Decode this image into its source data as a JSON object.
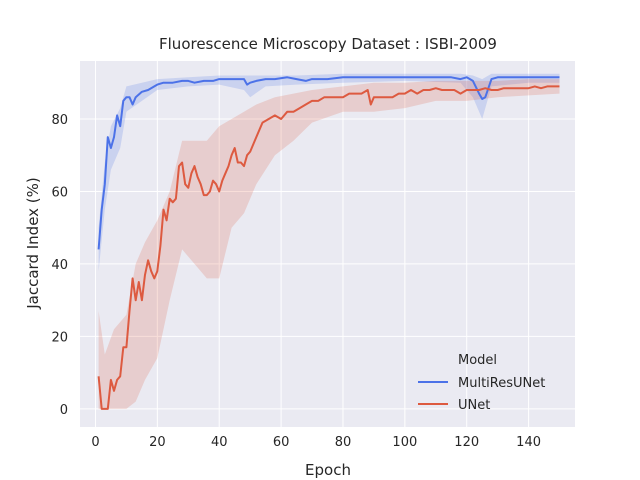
{
  "chart_data": {
    "type": "line",
    "title": "Fluorescence Microscopy Dataset : ISBI-2009",
    "xlabel": "Epoch",
    "ylabel": "Jaccard Index (%)",
    "xlim": [
      -5,
      155
    ],
    "ylim": [
      -5,
      96
    ],
    "xticks": [
      0,
      20,
      40,
      60,
      80,
      100,
      120,
      140
    ],
    "yticks": [
      0,
      20,
      40,
      60,
      80
    ],
    "grid": true,
    "background": "#eaeaf2",
    "legend": {
      "title": "Model",
      "placement": "lower-right",
      "entries": [
        "MultiResUNet",
        "UNet"
      ]
    },
    "series": [
      {
        "name": "MultiResUNet",
        "color": "#4c72e8",
        "points": [
          [
            1,
            44
          ],
          [
            2,
            55
          ],
          [
            3,
            62
          ],
          [
            4,
            75
          ],
          [
            5,
            72
          ],
          [
            6,
            75
          ],
          [
            7,
            81
          ],
          [
            8,
            78
          ],
          [
            9,
            85
          ],
          [
            10,
            86
          ],
          [
            11,
            86
          ],
          [
            12,
            84
          ],
          [
            13,
            86
          ],
          [
            15,
            87.5
          ],
          [
            17,
            88
          ],
          [
            20,
            89.5
          ],
          [
            22,
            90
          ],
          [
            25,
            90
          ],
          [
            28,
            90.5
          ],
          [
            30,
            90.5
          ],
          [
            32,
            90
          ],
          [
            35,
            90.5
          ],
          [
            38,
            90.5
          ],
          [
            40,
            91
          ],
          [
            43,
            91
          ],
          [
            46,
            91
          ],
          [
            48,
            91
          ],
          [
            49,
            89.5
          ],
          [
            50,
            90
          ],
          [
            52,
            90.5
          ],
          [
            55,
            91
          ],
          [
            58,
            91
          ],
          [
            62,
            91.5
          ],
          [
            65,
            91
          ],
          [
            68,
            90.5
          ],
          [
            70,
            91
          ],
          [
            75,
            91
          ],
          [
            80,
            91.5
          ],
          [
            85,
            91.5
          ],
          [
            90,
            91.5
          ],
          [
            95,
            91.5
          ],
          [
            100,
            91.5
          ],
          [
            105,
            91.5
          ],
          [
            110,
            91.5
          ],
          [
            115,
            91.5
          ],
          [
            118,
            91
          ],
          [
            120,
            91.5
          ],
          [
            122,
            90.5
          ],
          [
            124,
            87
          ],
          [
            125,
            85.5
          ],
          [
            126,
            86
          ],
          [
            128,
            91
          ],
          [
            130,
            91.5
          ],
          [
            135,
            91.5
          ],
          [
            140,
            91.5
          ],
          [
            145,
            91.5
          ],
          [
            150,
            91.5
          ]
        ],
        "band": [
          [
            1,
            38,
            50
          ],
          [
            3,
            55,
            68
          ],
          [
            5,
            66,
            78
          ],
          [
            8,
            72,
            83
          ],
          [
            10,
            82,
            89
          ],
          [
            15,
            85,
            90
          ],
          [
            20,
            88,
            91
          ],
          [
            30,
            89,
            91.5
          ],
          [
            40,
            89.5,
            92
          ],
          [
            48,
            88,
            92
          ],
          [
            50,
            86,
            92
          ],
          [
            55,
            89,
            92
          ],
          [
            65,
            89.5,
            92
          ],
          [
            80,
            90,
            92.5
          ],
          [
            100,
            90.5,
            92.5
          ],
          [
            118,
            90,
            92.5
          ],
          [
            122,
            86,
            92
          ],
          [
            125,
            80,
            91
          ],
          [
            128,
            89,
            92.5
          ],
          [
            140,
            90,
            92.5
          ],
          [
            150,
            90,
            92.5
          ]
        ]
      },
      {
        "name": "UNet",
        "color": "#dd5a40",
        "points": [
          [
            1,
            9
          ],
          [
            2,
            0
          ],
          [
            3,
            0
          ],
          [
            4,
            0
          ],
          [
            5,
            8
          ],
          [
            6,
            5
          ],
          [
            7,
            8
          ],
          [
            8,
            9
          ],
          [
            9,
            17
          ],
          [
            10,
            17
          ],
          [
            11,
            27
          ],
          [
            12,
            36
          ],
          [
            13,
            30
          ],
          [
            14,
            35
          ],
          [
            15,
            30
          ],
          [
            16,
            37
          ],
          [
            17,
            41
          ],
          [
            18,
            38
          ],
          [
            19,
            36
          ],
          [
            20,
            38
          ],
          [
            21,
            45
          ],
          [
            22,
            55
          ],
          [
            23,
            52
          ],
          [
            24,
            58
          ],
          [
            25,
            57
          ],
          [
            26,
            58
          ],
          [
            27,
            67
          ],
          [
            28,
            68
          ],
          [
            29,
            62
          ],
          [
            30,
            61
          ],
          [
            31,
            65
          ],
          [
            32,
            67
          ],
          [
            33,
            64
          ],
          [
            34,
            62
          ],
          [
            35,
            59
          ],
          [
            36,
            59
          ],
          [
            37,
            60
          ],
          [
            38,
            63
          ],
          [
            39,
            62
          ],
          [
            40,
            60
          ],
          [
            41,
            63
          ],
          [
            42,
            65
          ],
          [
            43,
            67
          ],
          [
            44,
            70
          ],
          [
            45,
            72
          ],
          [
            46,
            68
          ],
          [
            47,
            68
          ],
          [
            48,
            67
          ],
          [
            49,
            70
          ],
          [
            50,
            71
          ],
          [
            52,
            75
          ],
          [
            54,
            79
          ],
          [
            56,
            80
          ],
          [
            58,
            81
          ],
          [
            60,
            80
          ],
          [
            62,
            82
          ],
          [
            64,
            82
          ],
          [
            66,
            83
          ],
          [
            68,
            84
          ],
          [
            70,
            85
          ],
          [
            72,
            85
          ],
          [
            74,
            86
          ],
          [
            76,
            86
          ],
          [
            78,
            86
          ],
          [
            80,
            86
          ],
          [
            82,
            87
          ],
          [
            84,
            87
          ],
          [
            86,
            87
          ],
          [
            88,
            88
          ],
          [
            89,
            84
          ],
          [
            90,
            86
          ],
          [
            92,
            86
          ],
          [
            94,
            86
          ],
          [
            96,
            86
          ],
          [
            98,
            87
          ],
          [
            100,
            87
          ],
          [
            102,
            88
          ],
          [
            104,
            87
          ],
          [
            106,
            88
          ],
          [
            108,
            88
          ],
          [
            110,
            88.5
          ],
          [
            112,
            88
          ],
          [
            114,
            88
          ],
          [
            116,
            88
          ],
          [
            118,
            87
          ],
          [
            120,
            88
          ],
          [
            122,
            88
          ],
          [
            124,
            88
          ],
          [
            126,
            88.5
          ],
          [
            128,
            88
          ],
          [
            130,
            88
          ],
          [
            132,
            88.5
          ],
          [
            134,
            88.5
          ],
          [
            136,
            88.5
          ],
          [
            138,
            88.5
          ],
          [
            140,
            88.5
          ],
          [
            142,
            89
          ],
          [
            144,
            88.5
          ],
          [
            146,
            89
          ],
          [
            148,
            89
          ],
          [
            150,
            89
          ]
        ],
        "band": [
          [
            1,
            0,
            27
          ],
          [
            3,
            0,
            15
          ],
          [
            6,
            0,
            22
          ],
          [
            10,
            0,
            26
          ],
          [
            13,
            2,
            40
          ],
          [
            16,
            8,
            46
          ],
          [
            20,
            14,
            52
          ],
          [
            24,
            30,
            60
          ],
          [
            28,
            44,
            74
          ],
          [
            32,
            40,
            74
          ],
          [
            36,
            36,
            74
          ],
          [
            40,
            36,
            78
          ],
          [
            44,
            50,
            80
          ],
          [
            48,
            54,
            82
          ],
          [
            52,
            62,
            84
          ],
          [
            58,
            70,
            86
          ],
          [
            64,
            74,
            87
          ],
          [
            70,
            79,
            88
          ],
          [
            80,
            82,
            89
          ],
          [
            90,
            82,
            90
          ],
          [
            100,
            83,
            90
          ],
          [
            110,
            85,
            90.5
          ],
          [
            120,
            85,
            90.5
          ],
          [
            130,
            86,
            90.5
          ],
          [
            140,
            86.5,
            91
          ],
          [
            150,
            87,
            91
          ]
        ]
      }
    ]
  }
}
